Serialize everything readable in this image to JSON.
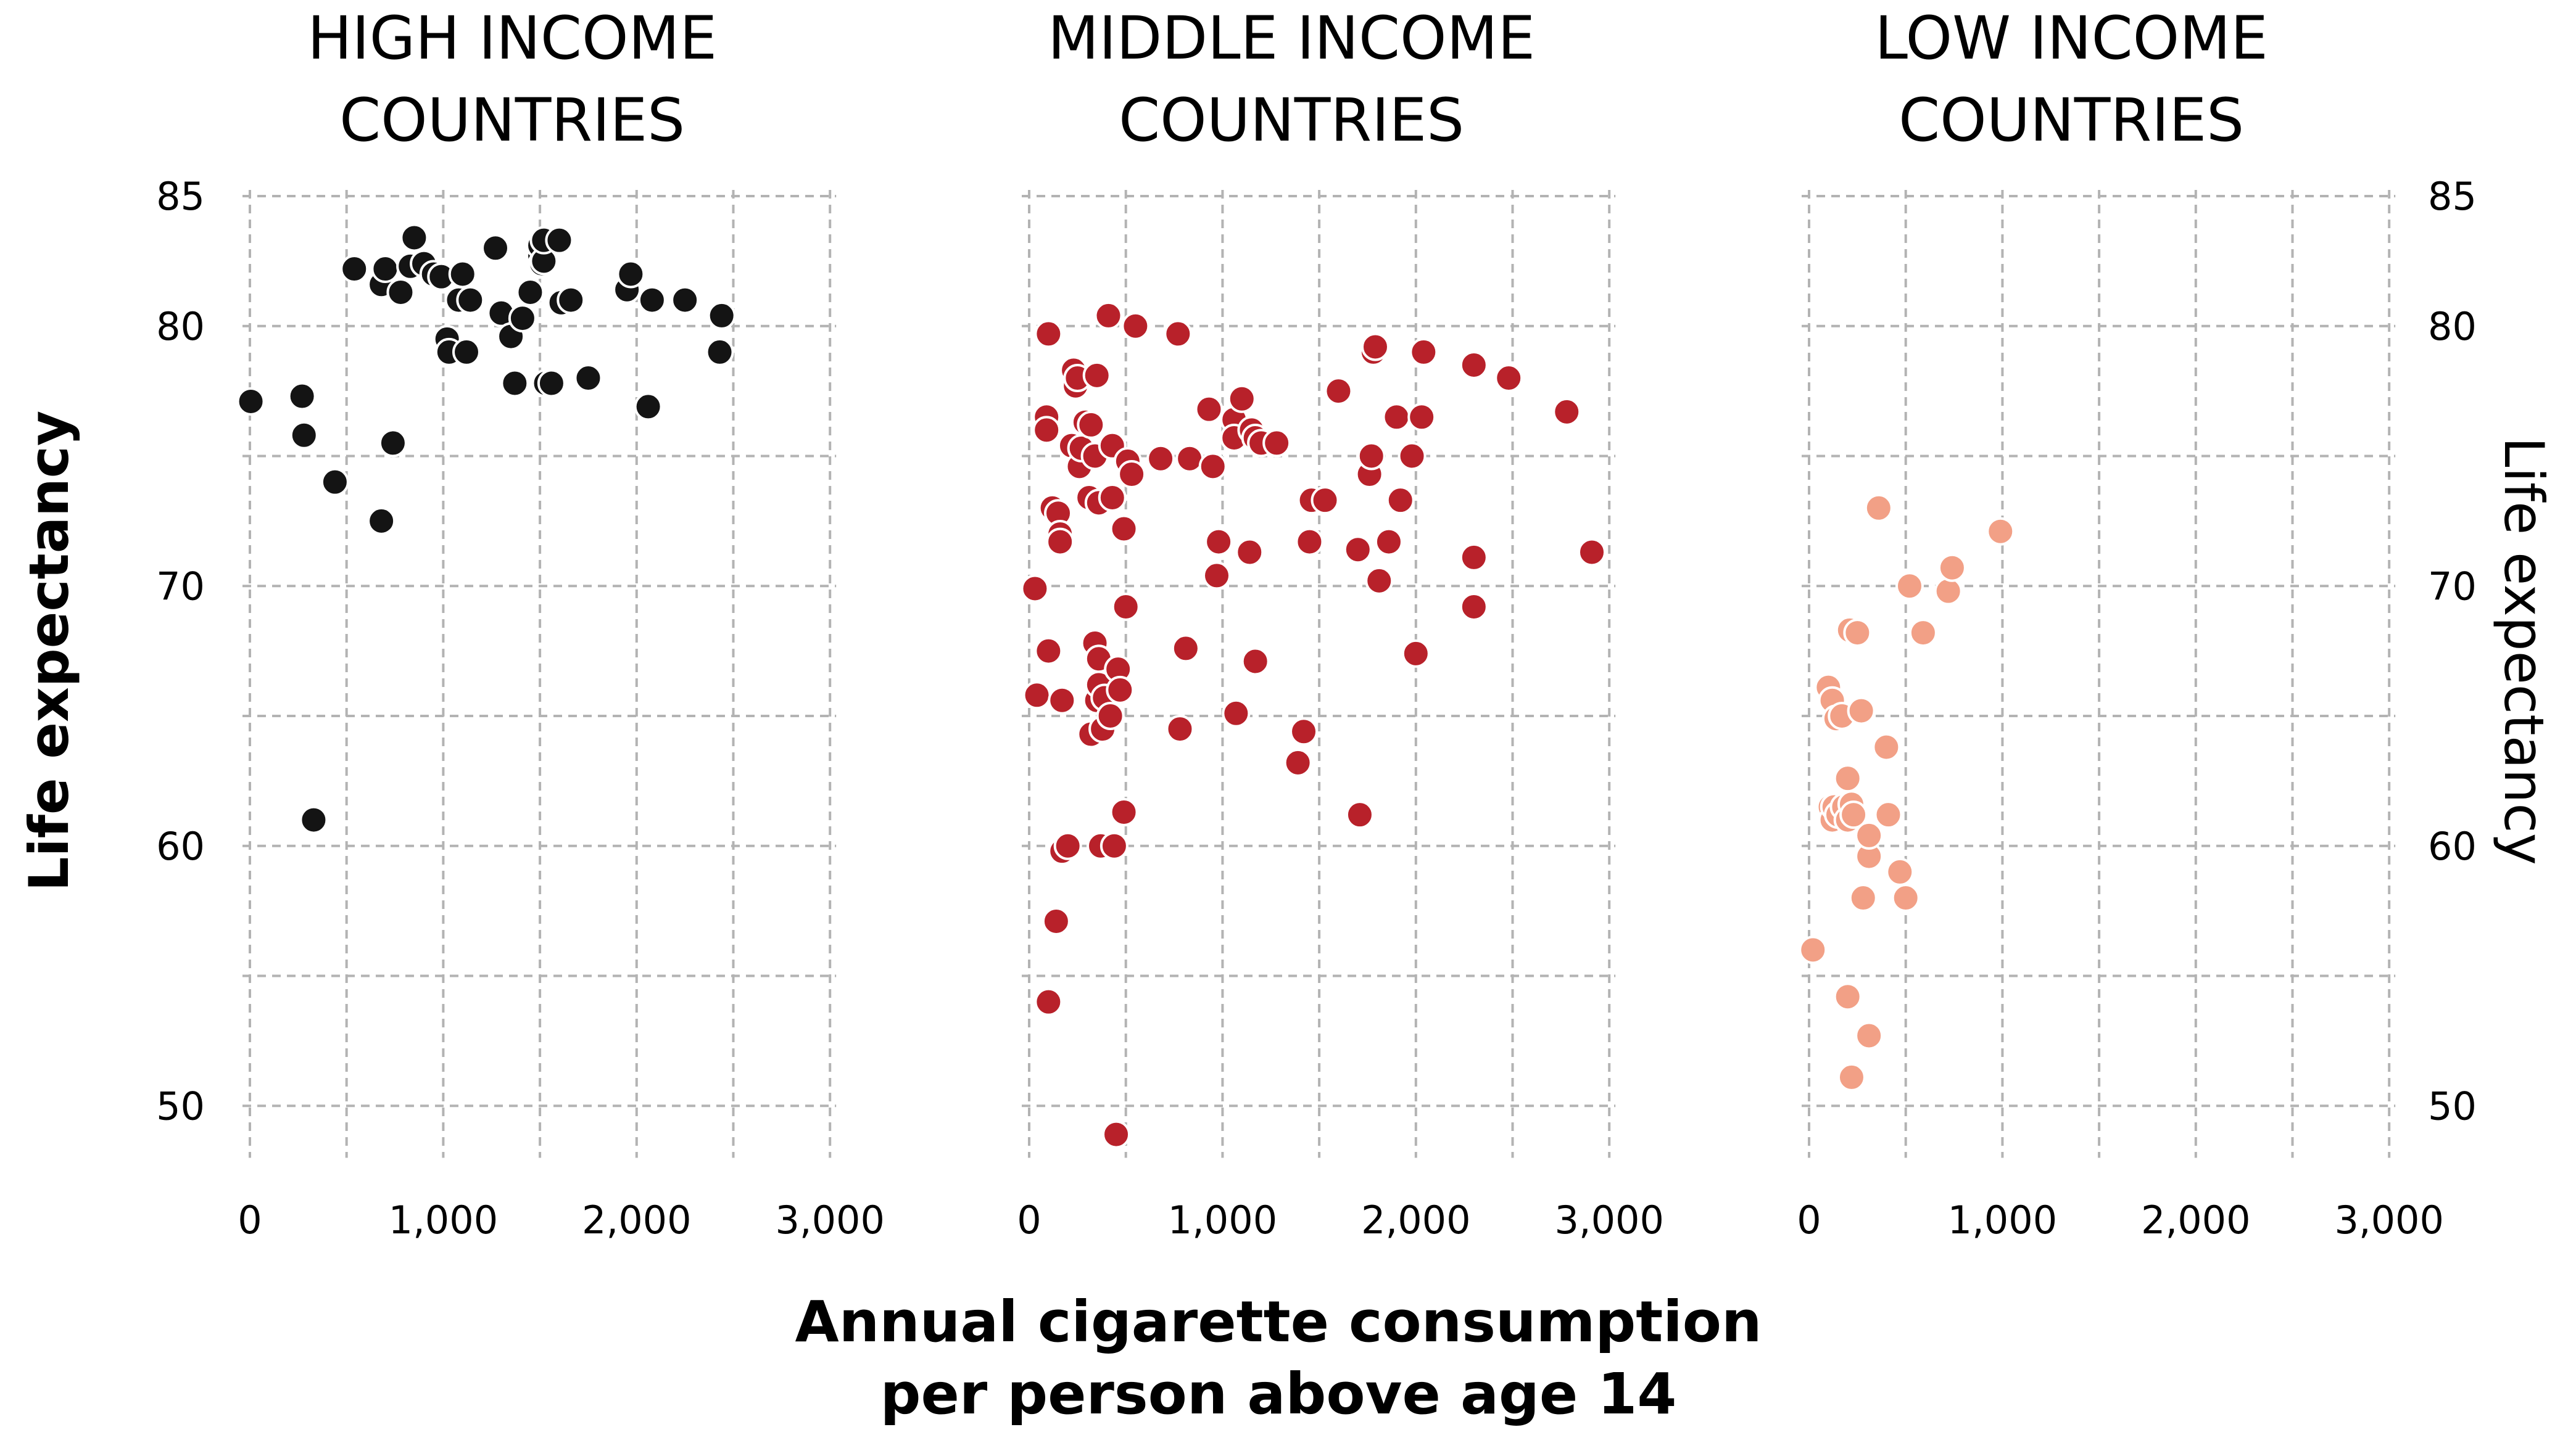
{
  "chart_data": {
    "type": "scatter",
    "xlabel_lines": [
      "Annual cigarette consumption",
      "per person above age 14"
    ],
    "ylabel": "Life expectancy",
    "xlim": [
      0,
      3000
    ],
    "ylim": [
      48,
      85
    ],
    "x_ticks": [
      0,
      1000,
      2000,
      3000
    ],
    "x_tick_labels": [
      "0",
      "1,000",
      "2,000",
      "3,000"
    ],
    "y_ticks": [
      50,
      60,
      70,
      80,
      85
    ],
    "y_tick_labels": [
      "50",
      "60",
      "70",
      "80",
      "85"
    ],
    "grid": true,
    "panels": [
      {
        "title_lines": [
          "HIGH INCOME",
          "COUNTRIES"
        ],
        "color": "#141414",
        "points": [
          [
            5,
            77.1
          ],
          [
            270,
            77.3
          ],
          [
            280,
            75.8
          ],
          [
            440,
            74.0
          ],
          [
            680,
            72.5
          ],
          [
            740,
            75.5
          ],
          [
            330,
            61.0
          ],
          [
            540,
            82.2
          ],
          [
            680,
            81.6
          ],
          [
            700,
            82.2
          ],
          [
            780,
            81.3
          ],
          [
            830,
            82.3
          ],
          [
            850,
            83.4
          ],
          [
            900,
            82.4
          ],
          [
            950,
            82.0
          ],
          [
            990,
            81.9
          ],
          [
            1020,
            79.5
          ],
          [
            1030,
            79.0
          ],
          [
            1080,
            81.0
          ],
          [
            1100,
            82.0
          ],
          [
            1120,
            79.0
          ],
          [
            1140,
            81.0
          ],
          [
            1270,
            83.0
          ],
          [
            1300,
            80.5
          ],
          [
            1350,
            79.6
          ],
          [
            1370,
            77.8
          ],
          [
            1410,
            80.3
          ],
          [
            1450,
            81.3
          ],
          [
            1500,
            82.7
          ],
          [
            1500,
            83.1
          ],
          [
            1510,
            82.4
          ],
          [
            1520,
            82.5
          ],
          [
            1520,
            83.3
          ],
          [
            1530,
            77.8
          ],
          [
            1560,
            77.8
          ],
          [
            1600,
            83.3
          ],
          [
            1610,
            80.9
          ],
          [
            1660,
            81.0
          ],
          [
            1750,
            78.0
          ],
          [
            1950,
            81.4
          ],
          [
            1970,
            82.0
          ],
          [
            2060,
            76.9
          ],
          [
            2080,
            81.0
          ],
          [
            2250,
            81.0
          ],
          [
            2440,
            80.4
          ],
          [
            2430,
            79.0
          ]
        ]
      },
      {
        "title_lines": [
          "MIDDLE INCOME",
          "COUNTRIES"
        ],
        "color": "#b8212a",
        "points": [
          [
            30,
            69.9
          ],
          [
            40,
            65.8
          ],
          [
            90,
            76.5
          ],
          [
            100,
            79.7
          ],
          [
            90,
            76.0
          ],
          [
            100,
            67.5
          ],
          [
            100,
            54.0
          ],
          [
            120,
            73.0
          ],
          [
            140,
            57.1
          ],
          [
            150,
            72.8
          ],
          [
            160,
            72.0
          ],
          [
            160,
            71.7
          ],
          [
            170,
            59.8
          ],
          [
            170,
            65.6
          ],
          [
            200,
            60.0
          ],
          [
            220,
            75.4
          ],
          [
            230,
            78.3
          ],
          [
            240,
            77.7
          ],
          [
            250,
            78.0
          ],
          [
            260,
            74.6
          ],
          [
            270,
            75.3
          ],
          [
            290,
            76.3
          ],
          [
            310,
            73.4
          ],
          [
            320,
            64.3
          ],
          [
            320,
            76.2
          ],
          [
            340,
            75.0
          ],
          [
            350,
            78.1
          ],
          [
            340,
            67.8
          ],
          [
            350,
            65.6
          ],
          [
            360,
            73.2
          ],
          [
            360,
            66.2
          ],
          [
            360,
            67.2
          ],
          [
            370,
            60.0
          ],
          [
            380,
            64.5
          ],
          [
            390,
            65.7
          ],
          [
            410,
            80.4
          ],
          [
            420,
            65.0
          ],
          [
            430,
            73.4
          ],
          [
            430,
            75.4
          ],
          [
            440,
            60.0
          ],
          [
            450,
            48.9
          ],
          [
            460,
            66.8
          ],
          [
            470,
            66.0
          ],
          [
            490,
            72.2
          ],
          [
            490,
            61.3
          ],
          [
            500,
            69.2
          ],
          [
            510,
            74.8
          ],
          [
            530,
            74.3
          ],
          [
            550,
            80.0
          ],
          [
            680,
            74.9
          ],
          [
            770,
            79.7
          ],
          [
            780,
            64.5
          ],
          [
            810,
            67.6
          ],
          [
            830,
            74.9
          ],
          [
            930,
            76.8
          ],
          [
            950,
            74.6
          ],
          [
            970,
            70.4
          ],
          [
            980,
            71.7
          ],
          [
            1060,
            76.4
          ],
          [
            1060,
            75.7
          ],
          [
            1070,
            65.1
          ],
          [
            1100,
            77.2
          ],
          [
            1140,
            71.3
          ],
          [
            1150,
            76.0
          ],
          [
            1170,
            67.1
          ],
          [
            1170,
            75.7
          ],
          [
            1200,
            75.5
          ],
          [
            1280,
            75.5
          ],
          [
            1390,
            63.2
          ],
          [
            1420,
            64.4
          ],
          [
            1450,
            71.7
          ],
          [
            1460,
            73.3
          ],
          [
            1530,
            73.3
          ],
          [
            1600,
            77.5
          ],
          [
            1700,
            71.4
          ],
          [
            1710,
            61.2
          ],
          [
            1760,
            74.3
          ],
          [
            1770,
            75.0
          ],
          [
            1780,
            79.0
          ],
          [
            1790,
            79.2
          ],
          [
            1810,
            70.2
          ],
          [
            1860,
            71.7
          ],
          [
            1900,
            76.5
          ],
          [
            1920,
            73.3
          ],
          [
            1980,
            75.0
          ],
          [
            2000,
            67.4
          ],
          [
            2030,
            76.5
          ],
          [
            2040,
            79.0
          ],
          [
            2300,
            78.5
          ],
          [
            2300,
            71.1
          ],
          [
            2300,
            69.2
          ],
          [
            2480,
            78.0
          ],
          [
            2780,
            76.7
          ],
          [
            2910,
            71.3
          ]
        ]
      },
      {
        "title_lines": [
          "LOW INCOME",
          "COUNTRIES"
        ],
        "color": "#f2a086",
        "points": [
          [
            20,
            56.0
          ],
          [
            100,
            66.1
          ],
          [
            110,
            61.5
          ],
          [
            120,
            65.6
          ],
          [
            120,
            61.0
          ],
          [
            130,
            61.5
          ],
          [
            140,
            64.9
          ],
          [
            150,
            61.2
          ],
          [
            170,
            65.0
          ],
          [
            180,
            61.5
          ],
          [
            200,
            54.2
          ],
          [
            200,
            62.6
          ],
          [
            200,
            61.0
          ],
          [
            210,
            68.3
          ],
          [
            220,
            51.1
          ],
          [
            220,
            61.6
          ],
          [
            230,
            61.2
          ],
          [
            250,
            68.2
          ],
          [
            270,
            65.2
          ],
          [
            280,
            58.0
          ],
          [
            310,
            52.7
          ],
          [
            310,
            59.6
          ],
          [
            310,
            60.4
          ],
          [
            360,
            73.0
          ],
          [
            400,
            63.8
          ],
          [
            410,
            61.2
          ],
          [
            470,
            59.0
          ],
          [
            500,
            58.0
          ],
          [
            520,
            70.0
          ],
          [
            590,
            68.2
          ],
          [
            720,
            69.8
          ],
          [
            740,
            70.7
          ],
          [
            990,
            72.1
          ]
        ]
      }
    ]
  }
}
